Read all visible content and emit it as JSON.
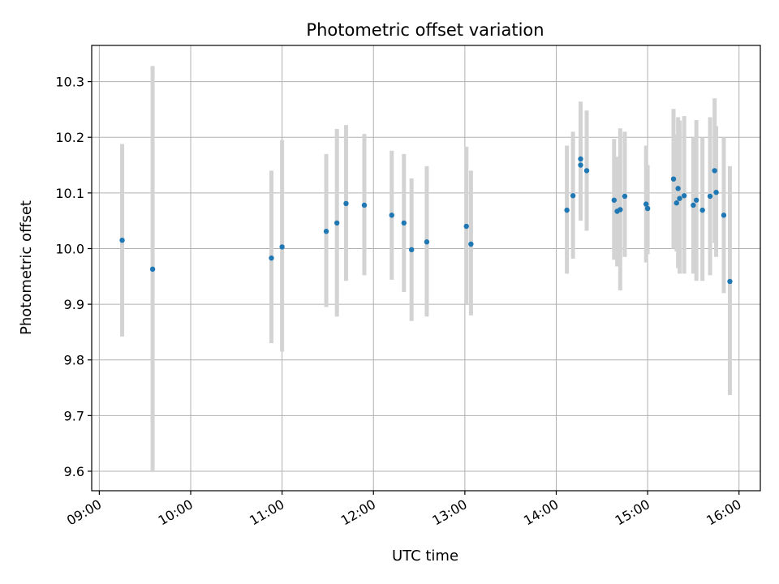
{
  "chart_data": {
    "type": "scatter",
    "title": "Photometric offset variation",
    "xlabel": "UTC time",
    "ylabel": "Photometric offset",
    "x_ticks": [
      "09:00",
      "10:00",
      "11:00",
      "12:00",
      "13:00",
      "14:00",
      "15:00",
      "16:00"
    ],
    "y_ticks": [
      "9.6",
      "9.7",
      "9.8",
      "9.9",
      "10.0",
      "10.1",
      "10.2",
      "10.3"
    ],
    "xlim": [
      "08:55",
      "16:14"
    ],
    "ylim": [
      9.565,
      10.365
    ],
    "grid": true,
    "legend": "none",
    "colors": {
      "point": "#1f77b4",
      "errorbar": "#d3d3d3",
      "grid": "#b0b0b0"
    },
    "series": [
      {
        "points": [
          {
            "t": "09:15",
            "y": 10.015,
            "lo": 9.842,
            "hi": 10.188
          },
          {
            "t": "09:35",
            "y": 9.963,
            "lo": 9.6,
            "hi": 10.328
          },
          {
            "t": "10:53",
            "y": 9.983,
            "lo": 9.83,
            "hi": 10.14
          },
          {
            "t": "11:00",
            "y": 10.003,
            "lo": 9.815,
            "hi": 10.195
          },
          {
            "t": "11:29",
            "y": 10.031,
            "lo": 9.895,
            "hi": 10.17
          },
          {
            "t": "11:36",
            "y": 10.046,
            "lo": 9.878,
            "hi": 10.215
          },
          {
            "t": "11:42",
            "y": 10.081,
            "lo": 9.942,
            "hi": 10.222
          },
          {
            "t": "11:54",
            "y": 10.078,
            "lo": 9.952,
            "hi": 10.206
          },
          {
            "t": "12:12",
            "y": 10.06,
            "lo": 9.944,
            "hi": 10.176
          },
          {
            "t": "12:20",
            "y": 10.046,
            "lo": 9.922,
            "hi": 10.17
          },
          {
            "t": "12:25",
            "y": 9.998,
            "lo": 9.87,
            "hi": 10.126
          },
          {
            "t": "12:35",
            "y": 10.012,
            "lo": 9.878,
            "hi": 10.148
          },
          {
            "t": "13:01",
            "y": 10.04,
            "lo": 9.9,
            "hi": 10.183
          },
          {
            "t": "13:04",
            "y": 10.008,
            "lo": 9.88,
            "hi": 10.14
          },
          {
            "t": "14:07",
            "y": 10.069,
            "lo": 9.955,
            "hi": 10.185
          },
          {
            "t": "14:11",
            "y": 10.095,
            "lo": 9.982,
            "hi": 10.21
          },
          {
            "t": "14:16",
            "y": 10.161,
            "lo": 10.058,
            "hi": 10.264
          },
          {
            "t": "14:16",
            "y": 10.15,
            "lo": 10.05,
            "hi": 10.25
          },
          {
            "t": "14:20",
            "y": 10.14,
            "lo": 10.032,
            "hi": 10.248
          },
          {
            "t": "14:38",
            "y": 10.087,
            "lo": 9.98,
            "hi": 10.197
          },
          {
            "t": "14:40",
            "y": 10.067,
            "lo": 9.968,
            "hi": 10.165
          },
          {
            "t": "14:42",
            "y": 10.07,
            "lo": 9.925,
            "hi": 10.216
          },
          {
            "t": "14:45",
            "y": 10.094,
            "lo": 9.985,
            "hi": 10.21
          },
          {
            "t": "14:59",
            "y": 10.08,
            "lo": 9.975,
            "hi": 10.185
          },
          {
            "t": "15:00",
            "y": 10.072,
            "lo": 9.99,
            "hi": 10.15
          },
          {
            "t": "15:17",
            "y": 10.125,
            "lo": 10.0,
            "hi": 10.251
          },
          {
            "t": "15:19",
            "y": 10.082,
            "lo": 9.995,
            "hi": 10.205
          },
          {
            "t": "15:20",
            "y": 10.108,
            "lo": 9.965,
            "hi": 10.236
          },
          {
            "t": "15:21",
            "y": 10.09,
            "lo": 9.955,
            "hi": 10.23
          },
          {
            "t": "15:24",
            "y": 10.095,
            "lo": 9.955,
            "hi": 10.238
          },
          {
            "t": "15:30",
            "y": 10.078,
            "lo": 9.955,
            "hi": 10.2
          },
          {
            "t": "15:32",
            "y": 10.087,
            "lo": 9.942,
            "hi": 10.231
          },
          {
            "t": "15:36",
            "y": 10.069,
            "lo": 9.942,
            "hi": 10.2
          },
          {
            "t": "15:41",
            "y": 10.094,
            "lo": 9.952,
            "hi": 10.236
          },
          {
            "t": "15:44",
            "y": 10.14,
            "lo": 10.01,
            "hi": 10.27
          },
          {
            "t": "15:45",
            "y": 10.101,
            "lo": 9.985,
            "hi": 10.22
          },
          {
            "t": "15:50",
            "y": 10.06,
            "lo": 9.92,
            "hi": 10.2
          },
          {
            "t": "15:54",
            "y": 9.941,
            "lo": 9.737,
            "hi": 10.148
          }
        ]
      }
    ]
  }
}
